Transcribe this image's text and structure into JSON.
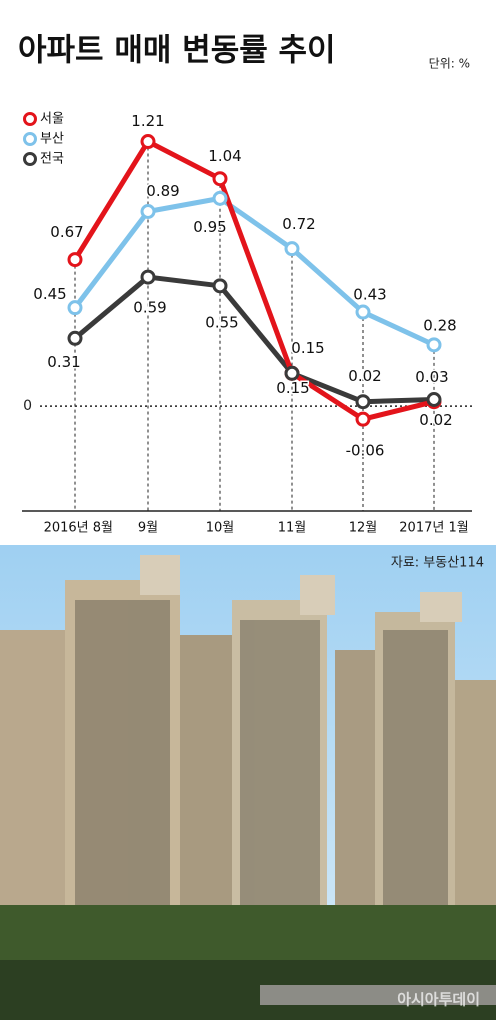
{
  "chart_data": {
    "type": "line",
    "title": "아파트 매매 변동률 추이",
    "unit": "단위: %",
    "source": "자료: 부동산114",
    "watermark": "아시아투데이",
    "categories": [
      "2016년 8월",
      "9월",
      "10월",
      "11월",
      "12월",
      "2017년 1월"
    ],
    "series": [
      {
        "name": "서울",
        "color": "#e3141b",
        "values": [
          0.67,
          1.21,
          1.04,
          0.15,
          -0.06,
          0.02
        ]
      },
      {
        "name": "부산",
        "color": "#7ec2ea",
        "values": [
          0.45,
          0.89,
          0.95,
          0.72,
          0.43,
          0.28
        ]
      },
      {
        "name": "전국",
        "color": "#3a3a3a",
        "values": [
          0.31,
          0.59,
          0.55,
          0.15,
          0.02,
          0.03
        ]
      }
    ],
    "ylim": [
      -0.48,
      1.4
    ],
    "yticks": [
      0
    ]
  }
}
